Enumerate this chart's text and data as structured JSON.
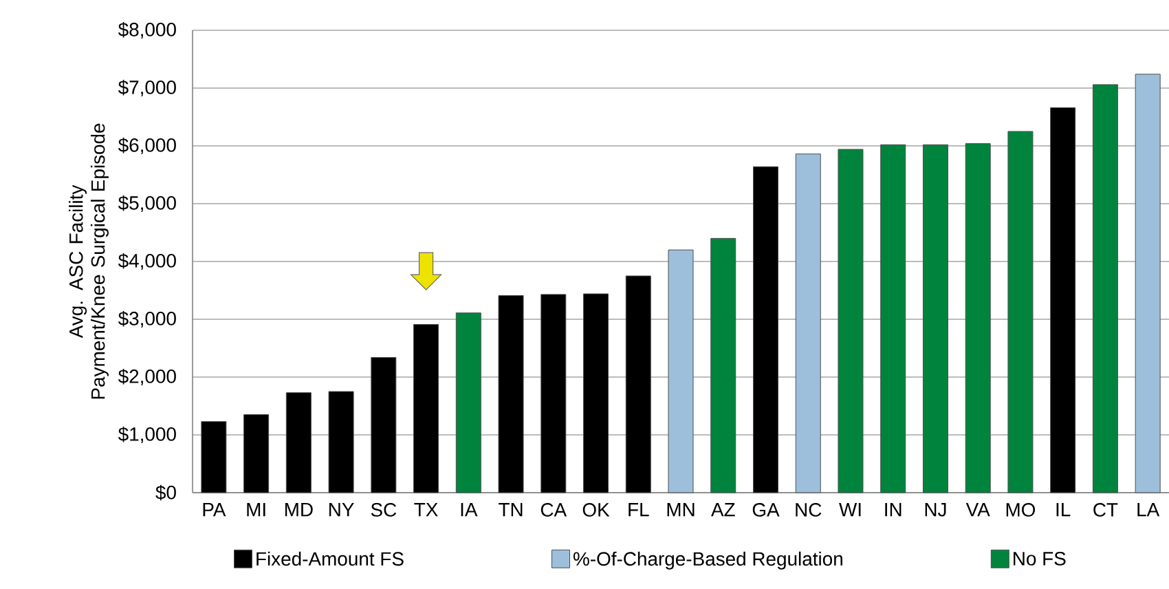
{
  "chart_data": {
    "type": "bar",
    "ylabel": "Avg. ASC Facility Payment/Knee Surgical Episode",
    "categories": [
      "PA",
      "MI",
      "MD",
      "NY",
      "SC",
      "TX",
      "IA",
      "TN",
      "CA",
      "OK",
      "FL",
      "MN",
      "AZ",
      "GA",
      "NC",
      "WI",
      "IN",
      "NJ",
      "VA",
      "MO",
      "IL",
      "CT",
      "LA"
    ],
    "series": [
      {
        "name": "Fixed-Amount FS",
        "color": "#000000",
        "values": [
          1230,
          1350,
          1730,
          1750,
          2340,
          2910,
          null,
          3410,
          3430,
          3440,
          3750,
          null,
          null,
          5640,
          null,
          null,
          null,
          null,
          null,
          null,
          6660,
          null,
          null
        ]
      },
      {
        "name": "%-Of-Charge-Based Regulation",
        "color": "#9dbfdb",
        "values": [
          null,
          null,
          null,
          null,
          null,
          null,
          null,
          null,
          null,
          null,
          null,
          4200,
          null,
          null,
          5860,
          null,
          null,
          null,
          null,
          null,
          null,
          null,
          7240
        ]
      },
      {
        "name": "No FS",
        "color": "#00843d",
        "values": [
          null,
          null,
          null,
          null,
          null,
          null,
          3110,
          null,
          null,
          null,
          null,
          null,
          4400,
          null,
          null,
          5940,
          6020,
          6020,
          6040,
          6250,
          null,
          7060,
          null
        ]
      }
    ],
    "ylim": [
      0,
      8000
    ],
    "yticks": [
      {
        "value": 0,
        "label": "$0"
      },
      {
        "value": 1000,
        "label": "$1,000"
      },
      {
        "value": 2000,
        "label": "$2,000"
      },
      {
        "value": 3000,
        "label": "$3,000"
      },
      {
        "value": 4000,
        "label": "$4,000"
      },
      {
        "value": 5000,
        "label": "$5,000"
      },
      {
        "value": 6000,
        "label": "$6,000"
      },
      {
        "value": 7000,
        "label": "$7,000"
      },
      {
        "value": 8000,
        "label": "$8,000"
      }
    ],
    "grid": "y",
    "legend": "bottom"
  }
}
